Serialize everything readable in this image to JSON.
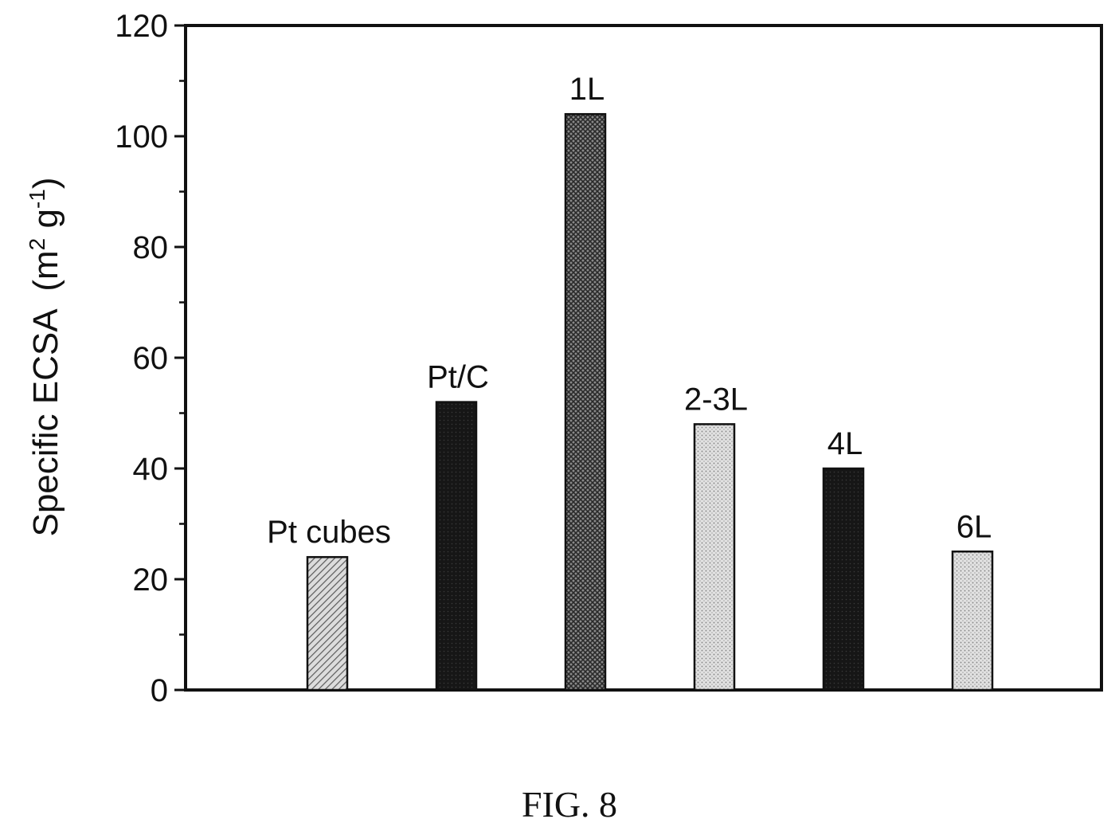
{
  "figure_caption": "FIG. 8",
  "chart_data": {
    "type": "bar",
    "categories": [
      "Pt cubes",
      "Pt/C",
      "1L",
      "2-3L",
      "4L",
      "6L"
    ],
    "values": [
      24,
      52,
      104,
      48,
      40,
      25
    ],
    "title": "",
    "xlabel": "",
    "ylabel": {
      "base": "Specific ECSA",
      "unit_open": "(m",
      "unit_exp1": "2",
      "unit_mid": " g",
      "unit_exp2": "-1",
      "unit_close": ")"
    },
    "ylim": [
      0,
      120
    ],
    "yticks": [
      0,
      20,
      40,
      60,
      80,
      100,
      120
    ],
    "grid": false,
    "legend": "none",
    "bar_fills": [
      "hatch-light",
      "solid-dark",
      "crosshatch-dark",
      "dotted-light",
      "solid-dark",
      "dotted-light"
    ],
    "colors": {
      "dark": "#141414",
      "medium": "#4a4a4a",
      "light": "#b8b8b8",
      "axis": "#111111"
    }
  }
}
